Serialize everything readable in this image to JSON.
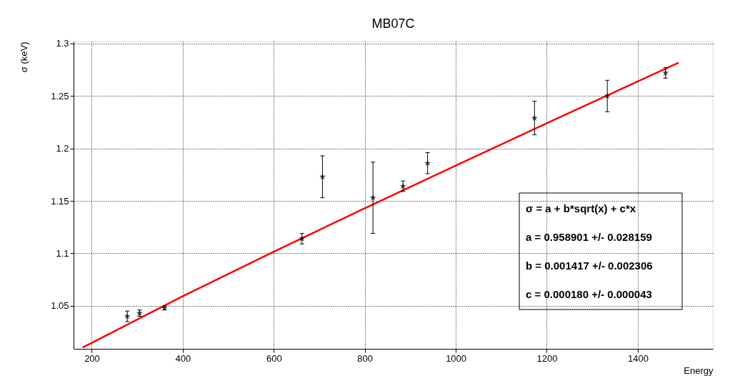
{
  "chart_data": {
    "type": "scatter",
    "title": "MB07C",
    "xlabel": "Energy",
    "ylabel": "σ (keV)",
    "xlim": [
      160,
      1565
    ],
    "ylim": [
      1.009,
      1.302
    ],
    "xticks": [
      200,
      400,
      600,
      800,
      1000,
      1200,
      1400
    ],
    "yticks": [
      1.05,
      1.1,
      1.15,
      1.2,
      1.25,
      1.3
    ],
    "grid": true,
    "series": [
      {
        "marker": "star",
        "color": "#000000",
        "x": [
          278,
          305,
          360,
          662,
          707,
          818,
          884,
          938,
          1173,
          1333,
          1461
        ],
        "values": [
          1.04,
          1.043,
          1.048,
          1.114,
          1.173,
          1.153,
          1.164,
          1.186,
          1.229,
          1.25,
          1.272
        ],
        "errors": [
          0.005,
          0.003,
          0.002,
          0.005,
          0.02,
          0.034,
          0.005,
          0.01,
          0.016,
          0.015,
          0.005
        ]
      },
      {
        "type": "line",
        "color": "#ff0000",
        "x": [
          180,
          400,
          600,
          800,
          1000,
          1200,
          1400,
          1490
        ],
        "values": [
          1.0103,
          1.0592,
          1.1016,
          1.143,
          1.1837,
          1.224,
          1.2639,
          1.2818
        ]
      }
    ],
    "annotations": [
      "σ = a + b*sqrt(x) + c*x",
      "a = 0.958901 +/- 0.028159",
      "b = 0.001417 +/- 0.002306",
      "c = 0.000180 +/- 0.000043"
    ]
  }
}
